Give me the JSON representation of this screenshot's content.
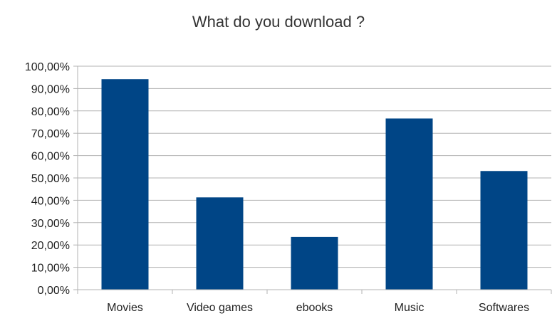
{
  "chart_data": {
    "type": "bar",
    "title": "What do you download ?",
    "xlabel": "",
    "ylabel": "",
    "categories": [
      "Movies",
      "Video games",
      "ebooks",
      "Music",
      "Softwares"
    ],
    "values": [
      94.2,
      41.3,
      23.6,
      76.6,
      53.1
    ],
    "ylim": [
      0,
      100
    ],
    "yticks": [
      "0,00%",
      "10,00%",
      "20,00%",
      "30,00%",
      "40,00%",
      "50,00%",
      "60,00%",
      "70,00%",
      "80,00%",
      "90,00%",
      "100,00%"
    ],
    "grid": true,
    "legend": "none",
    "bar_color": "#004586",
    "grid_color": "#b3b3b3"
  }
}
